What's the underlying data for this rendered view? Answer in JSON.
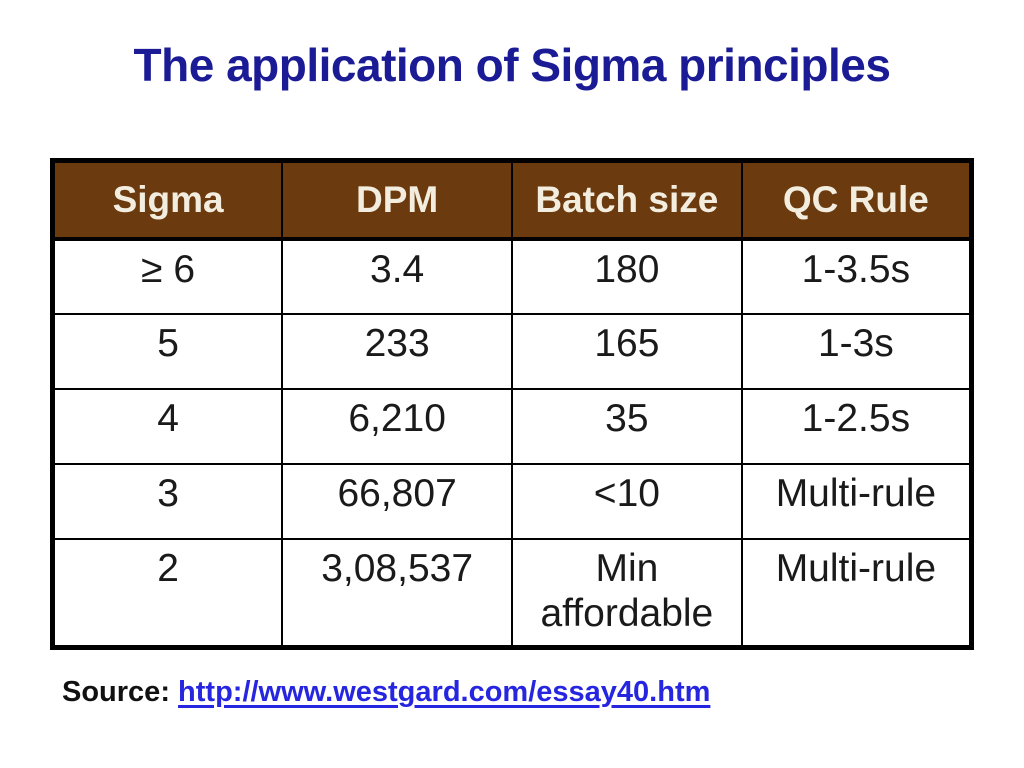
{
  "slide": {
    "title": "The application of Sigma principles",
    "background": "#ffffff"
  },
  "table": {
    "headers": [
      "Sigma",
      "DPM",
      "Batch size",
      "QC Rule"
    ],
    "rows": [
      [
        "≥ 6",
        "3.4",
        "180",
        "1-3.5s"
      ],
      [
        "5",
        "233",
        "165",
        "1-3s"
      ],
      [
        "4",
        "6,210",
        "35",
        "1-2.5s"
      ],
      [
        "3",
        "66,807",
        "<10",
        "Multi-rule"
      ],
      [
        "2",
        "3,08,537",
        "Min affordable",
        "Multi-rule"
      ]
    ]
  },
  "source": {
    "label": "Source:",
    "link": "http://www.westgard.com/essay40.htm"
  },
  "colors": {
    "title": "#1b1b96",
    "header_bg": "#6b3a0e",
    "header_text": "#f3eddf",
    "link": "#2626e0",
    "border": "#000000",
    "background": "#ffffff"
  }
}
